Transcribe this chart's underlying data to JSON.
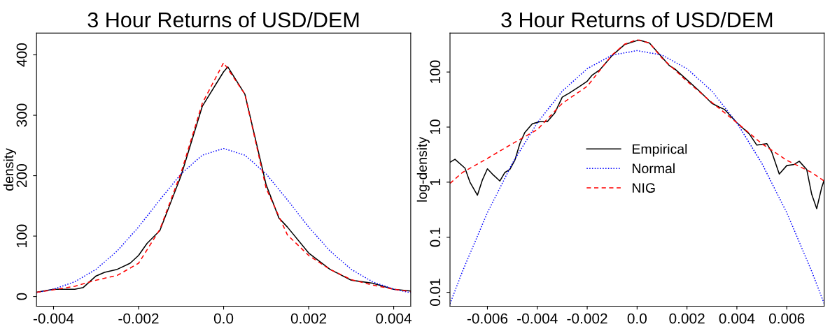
{
  "chart_data": [
    {
      "type": "line",
      "title": "3 Hour Returns of USD/DEM",
      "ylabel": "density",
      "xlim": [
        -0.0044,
        0.0044
      ],
      "ylim": [
        -16,
        436
      ],
      "xticks": [
        -0.004,
        -0.002,
        {
          "value": 0,
          "label": "0.0"
        },
        0.002,
        0.004
      ],
      "yticks": [
        0,
        100,
        200,
        300,
        400
      ],
      "grid": false,
      "marker": "none",
      "series": [
        {
          "color": "#000000",
          "line_style": "solid",
          "x": [
            -0.0044,
            -0.004,
            -0.0035,
            -0.0033,
            -0.003,
            -0.0028,
            -0.0025,
            -0.0022,
            -0.002,
            -0.0018,
            -0.0015,
            -0.001,
            -0.0005,
            0,
            0.0001,
            0.0005,
            0.001,
            0.0013,
            0.0015,
            0.002,
            0.0025,
            0.003,
            0.0035,
            0.004,
            0.0044
          ],
          "values": [
            7,
            12,
            12,
            15,
            34,
            40,
            45,
            55,
            68,
            88,
            109,
            200,
            315,
            372,
            380,
            335,
            185,
            130,
            115,
            72,
            45,
            27,
            22,
            12,
            9
          ]
        },
        {
          "color": "#0000ff",
          "line_style": "dotted",
          "x": [
            -0.0044,
            -0.004,
            -0.0035,
            -0.003,
            -0.0025,
            -0.002,
            -0.0015,
            -0.001,
            -0.0005,
            0,
            0.0005,
            0.001,
            0.0015,
            0.002,
            0.0025,
            0.003,
            0.0035,
            0.004,
            0.0044
          ],
          "values": [
            6.4,
            12,
            24.5,
            45,
            75.6,
            115,
            160,
            203,
            234,
            245,
            234,
            203,
            160,
            115,
            75.6,
            45,
            24.5,
            12,
            6.4
          ]
        },
        {
          "color": "#ff0000",
          "line_style": "dashed",
          "x": [
            -0.0044,
            -0.004,
            -0.0035,
            -0.003,
            -0.0025,
            -0.002,
            -0.0015,
            -0.001,
            -0.0005,
            0,
            0.0005,
            0.001,
            0.0015,
            0.002,
            0.0025,
            0.003,
            0.0035,
            0.004,
            0.0044
          ],
          "values": [
            7,
            11,
            17,
            27,
            35,
            55,
            111,
            205,
            320,
            387,
            335,
            179,
            102,
            68,
            45,
            28,
            19,
            12,
            8
          ]
        }
      ]
    },
    {
      "type": "line",
      "title": "3 Hour Returns of USD/DEM",
      "ylabel": "log-density",
      "log": "y",
      "xlim": [
        -0.0075,
        0.0075
      ],
      "ylim": [
        0.0056,
        509
      ],
      "xticks": [
        -0.006,
        -0.004,
        -0.002,
        {
          "value": 0,
          "label": "0.0"
        },
        0.002,
        0.004,
        0.006
      ],
      "yticks": [
        0.01,
        0.1,
        1,
        10,
        100
      ],
      "grid": false,
      "marker": "none",
      "legend": "center",
      "series": [
        {
          "name": "Empirical",
          "color": "#000000",
          "line_style": "solid",
          "x": [
            -0.0075,
            -0.0073,
            -0.0069,
            -0.0067,
            -0.0064,
            -0.0062,
            -0.006,
            -0.0058,
            -0.0055,
            -0.0053,
            -0.0051,
            -0.0049,
            -0.0047,
            -0.0045,
            -0.0042,
            -0.0039,
            -0.0036,
            -0.0033,
            -0.003,
            -0.0027,
            -0.0023,
            -0.002,
            -0.0018,
            -0.0015,
            -0.001,
            -0.0005,
            0,
            0.0001,
            0.0005,
            0.001,
            0.0013,
            0.0015,
            0.002,
            0.0025,
            0.003,
            0.0033,
            0.0035,
            0.004,
            0.0045,
            0.0048,
            0.0052,
            0.0054,
            0.0057,
            0.006,
            0.0063,
            0.0065,
            0.0068,
            0.007,
            0.0072,
            0.0074,
            0.0075
          ],
          "values": [
            2.3,
            2.6,
            1.8,
            1.0,
            0.58,
            1.1,
            1.75,
            1.4,
            1.05,
            1.5,
            1.7,
            2.5,
            5,
            8,
            11.5,
            12.5,
            12.5,
            18,
            35,
            42,
            55,
            68,
            88,
            109,
            200,
            315,
            372,
            380,
            335,
            185,
            130,
            115,
            72,
            45,
            27,
            23,
            21,
            12,
            7.5,
            4.7,
            5,
            3.5,
            1.4,
            2,
            2.1,
            2.4,
            1.7,
            0.6,
            0.33,
            0.8,
            1.1
          ]
        },
        {
          "name": "Normal",
          "color": "#0000ff",
          "line_style": "dotted",
          "x": [
            -0.0075,
            -0.007,
            -0.006,
            -0.005,
            -0.004,
            -0.003,
            -0.002,
            -0.001,
            0,
            0.001,
            0.002,
            0.003,
            0.004,
            0.005,
            0.006,
            0.007,
            0.0075
          ],
          "values": [
            0.0062,
            0.024,
            0.28,
            2.2,
            12,
            45,
            115,
            203,
            245,
            203,
            115,
            45,
            12,
            2.2,
            0.28,
            0.024,
            0.0062
          ]
        },
        {
          "name": "NIG",
          "color": "#ff0000",
          "line_style": "dashed",
          "x": [
            -0.0075,
            -0.007,
            -0.006,
            -0.005,
            -0.004,
            -0.003,
            -0.002,
            -0.001,
            -0.0005,
            0,
            0.0005,
            0.001,
            0.002,
            0.003,
            0.004,
            0.005,
            0.006,
            0.007,
            0.0075
          ],
          "values": [
            0.95,
            1.5,
            2.7,
            5,
            9,
            27,
            55,
            205,
            320,
            387,
            335,
            179,
            68,
            28,
            12,
            5,
            2.5,
            1.5,
            1.05
          ]
        }
      ]
    }
  ]
}
